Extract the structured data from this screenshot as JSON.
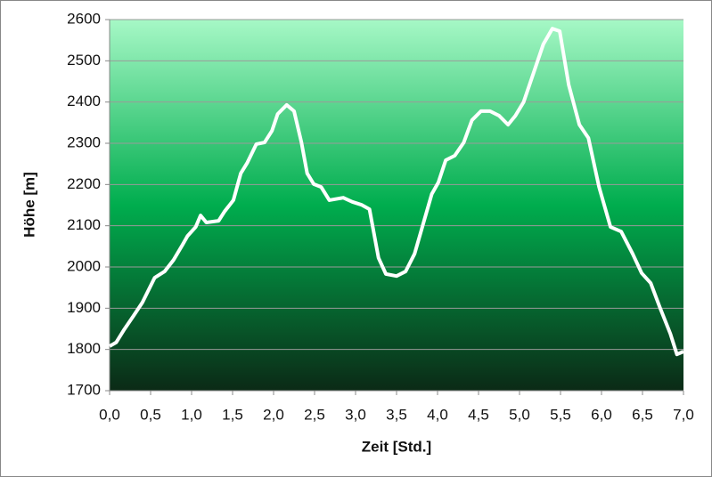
{
  "chart_data": {
    "type": "line",
    "x_label": "Zeit [Std.]",
    "y_label": "Höhe [m]",
    "x": [
      0,
      0.08,
      0.18,
      0.29,
      0.4,
      0.55,
      0.67,
      0.78,
      0.89,
      0.95,
      1.05,
      1.11,
      1.18,
      1.33,
      1.4,
      1.51,
      1.6,
      1.68,
      1.79,
      1.89,
      1.98,
      2.05,
      2.16,
      2.25,
      2.34,
      2.41,
      2.49,
      2.58,
      2.68,
      2.85,
      2.96,
      3.07,
      3.17,
      3.28,
      3.37,
      3.5,
      3.61,
      3.72,
      3.83,
      3.93,
      4.01,
      4.1,
      4.21,
      4.32,
      4.42,
      4.53,
      4.64,
      4.75,
      4.86,
      4.95,
      5.05,
      5.16,
      5.29,
      5.4,
      5.49,
      5.6,
      5.73,
      5.84,
      5.97,
      6.11,
      6.24,
      6.38,
      6.49,
      6.6,
      6.71,
      6.84,
      6.92,
      7.0
    ],
    "series": [
      {
        "color": "#ffffff",
        "values": [
          1808,
          1817,
          1849,
          1881,
          1914,
          1974,
          1989,
          2017,
          2054,
          2075,
          2097,
          2125,
          2108,
          2112,
          2134,
          2162,
          2227,
          2253,
          2298,
          2302,
          2330,
          2371,
          2393,
          2378,
          2302,
          2227,
          2201,
          2194,
          2162,
          2168,
          2158,
          2151,
          2140,
          2022,
          1983,
          1978,
          1989,
          2032,
          2108,
          2177,
          2205,
          2259,
          2270,
          2302,
          2356,
          2378,
          2378,
          2367,
          2345,
          2367,
          2400,
          2464,
          2540,
          2578,
          2572,
          2442,
          2345,
          2313,
          2194,
          2097,
          2086,
          2032,
          1985,
          1961,
          1903,
          1838,
          1788,
          1795
        ]
      }
    ],
    "xlim": [
      0,
      7
    ],
    "ylim": [
      1700,
      2600
    ],
    "xticks": [
      {
        "value": 0,
        "label": "0,0"
      },
      {
        "value": 0.5,
        "label": "0,5"
      },
      {
        "value": 1,
        "label": "1,0"
      },
      {
        "value": 1.5,
        "label": "1,5"
      },
      {
        "value": 2,
        "label": "2,0"
      },
      {
        "value": 2.5,
        "label": "2,5"
      },
      {
        "value": 3,
        "label": "3,0"
      },
      {
        "value": 3.5,
        "label": "3,5"
      },
      {
        "value": 4,
        "label": "4,0"
      },
      {
        "value": 4.5,
        "label": "4,5"
      },
      {
        "value": 5,
        "label": "5,0"
      },
      {
        "value": 5.5,
        "label": "5,5"
      },
      {
        "value": 6,
        "label": "6,0"
      },
      {
        "value": 6.5,
        "label": "6,5"
      },
      {
        "value": 7,
        "label": "7,0"
      }
    ],
    "yticks": [
      1700,
      1800,
      1900,
      2000,
      2100,
      2200,
      2300,
      2400,
      2500,
      2600
    ],
    "grid": true
  }
}
